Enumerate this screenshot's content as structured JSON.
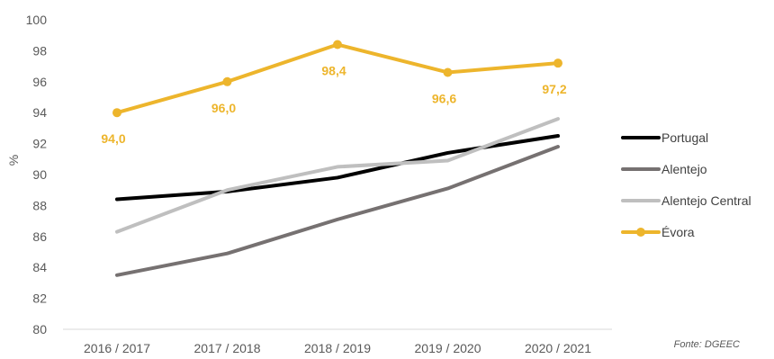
{
  "chart_data": {
    "type": "line",
    "ylabel": "%",
    "ylim": [
      80,
      100
    ],
    "yticks": [
      80,
      82,
      84,
      86,
      88,
      90,
      92,
      94,
      96,
      98,
      100
    ],
    "categories": [
      "2016 / 2017",
      "2017 / 2018",
      "2018 / 2019",
      "2019 / 2020",
      "2020 / 2021"
    ],
    "series": [
      {
        "name": "Portugal",
        "color": "#000000",
        "values": [
          88.4,
          88.9,
          89.8,
          91.4,
          92.5
        ],
        "markers": false,
        "labels": false
      },
      {
        "name": "Alentejo",
        "color": "#767171",
        "values": [
          83.5,
          84.9,
          87.1,
          89.1,
          91.8
        ],
        "markers": false,
        "labels": false
      },
      {
        "name": "Alentejo Central",
        "color": "#bfbfbf",
        "values": [
          86.3,
          89.0,
          90.5,
          90.9,
          93.6
        ],
        "markers": false,
        "labels": false
      },
      {
        "name": "Évora",
        "color": "#edb52c",
        "values": [
          94.0,
          96.0,
          98.4,
          96.6,
          97.2
        ],
        "markers": true,
        "labels": true,
        "data_labels": [
          "94,0",
          "96,0",
          "98,4",
          "96,6",
          "97,2"
        ]
      }
    ],
    "grid": false,
    "legend_position": "right",
    "source": "Fonte: DGEEC"
  }
}
